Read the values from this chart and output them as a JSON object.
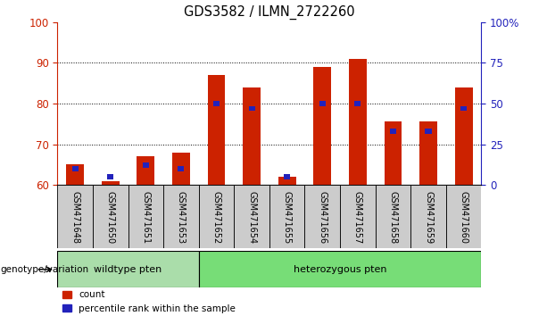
{
  "title": "GDS3582 / ILMN_2722260",
  "categories": [
    "GSM471648",
    "GSM471650",
    "GSM471651",
    "GSM471653",
    "GSM471652",
    "GSM471654",
    "GSM471655",
    "GSM471656",
    "GSM471657",
    "GSM471658",
    "GSM471659",
    "GSM471660"
  ],
  "count_values": [
    65.0,
    61.0,
    67.0,
    68.0,
    87.0,
    84.0,
    62.0,
    89.0,
    91.0,
    75.5,
    75.5,
    84.0
  ],
  "percentile_values": [
    10,
    5,
    12,
    10,
    50,
    47,
    5,
    50,
    50,
    33,
    33,
    47
  ],
  "y_min": 60,
  "y_max": 100,
  "y_ticks_left": [
    60,
    70,
    80,
    90,
    100
  ],
  "right_ticks": [
    0,
    25,
    50,
    75,
    100
  ],
  "right_tick_labels": [
    "0",
    "25",
    "50",
    "75",
    "100%"
  ],
  "bar_color": "#cc2200",
  "percentile_color": "#2222bb",
  "bar_width": 0.5,
  "pct_bar_width": 0.18,
  "wildtype_count": 4,
  "heterozygous_count": 8,
  "wildtype_label": "wildtype pten",
  "heterozygous_label": "heterozygous pten",
  "group_label": "genotype/variation",
  "legend_count": "count",
  "legend_percentile": "percentile rank within the sample",
  "wildtype_color": "#aaddaa",
  "heterozygous_color": "#77dd77",
  "cat_bg_color": "#cccccc",
  "tick_color_left": "#cc2200",
  "tick_color_right": "#2222bb",
  "grid_color": "black"
}
